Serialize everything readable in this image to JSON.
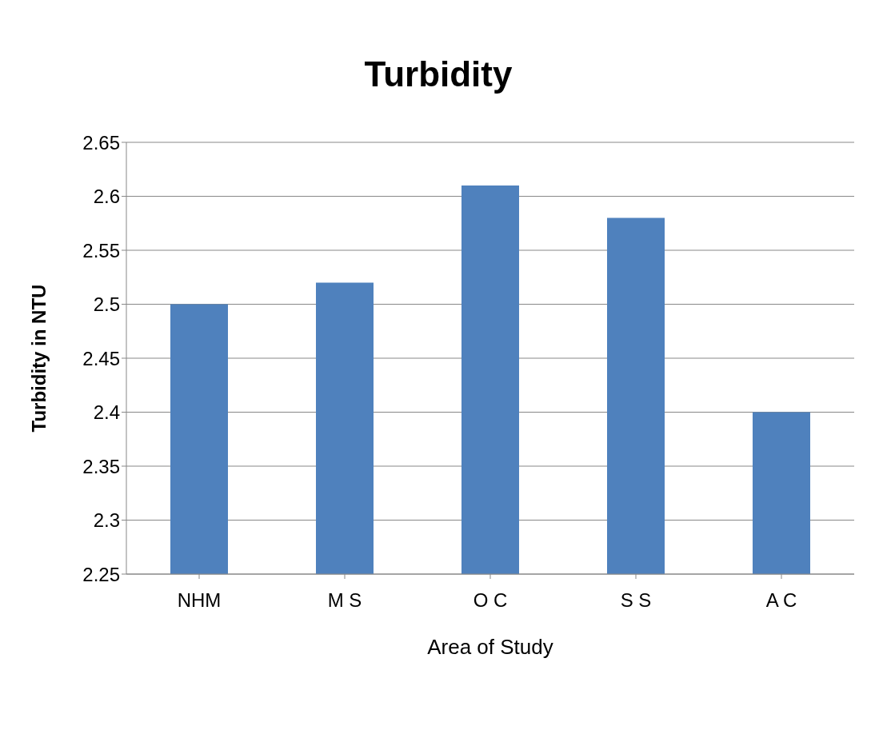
{
  "chart_data": {
    "type": "bar",
    "title": "Turbidity",
    "xlabel": "Area of Study",
    "ylabel": "Turbidity  in NTU",
    "categories": [
      "NHM",
      "M S",
      "O C",
      "S S",
      "A C"
    ],
    "values": [
      2.5,
      2.52,
      2.61,
      2.58,
      2.4
    ],
    "color": "#4f81bd",
    "ylim": [
      2.25,
      2.65
    ],
    "yticks": [
      2.25,
      2.3,
      2.35,
      2.4,
      2.45,
      2.5,
      2.55,
      2.6,
      2.65
    ],
    "grid": "y"
  }
}
